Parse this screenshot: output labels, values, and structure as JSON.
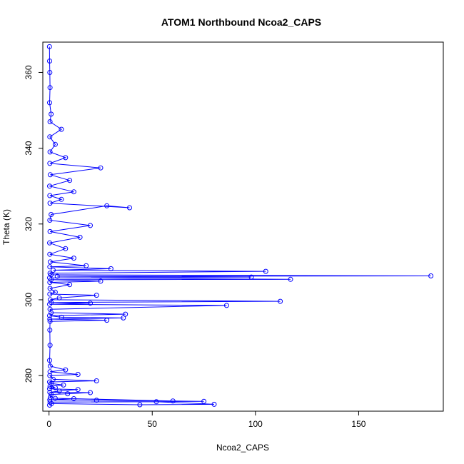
{
  "chart_data": {
    "type": "line",
    "title": "ATOM1 Northbound Ncoa2_CAPS",
    "xlabel": "Ncoa2_CAPS",
    "ylabel": "Theta (K)",
    "xlim": [
      -3,
      191
    ],
    "ylim": [
      270.6,
      368
    ],
    "xticks": [
      0,
      50,
      100,
      150
    ],
    "yticks": [
      280,
      300,
      320,
      340,
      360
    ],
    "grid": false,
    "series_color": "#0000ff",
    "marker": "open-circle",
    "series": [
      {
        "points": [
          [
            0.3,
            272.2
          ],
          [
            1.2,
            272.6
          ],
          [
            44,
            272.3
          ],
          [
            80,
            272.4
          ],
          [
            52,
            273.1
          ],
          [
            0.5,
            273.0
          ],
          [
            75,
            273.2
          ],
          [
            23,
            273.5
          ],
          [
            0.4,
            273.6
          ],
          [
            12,
            273.9
          ],
          [
            60,
            273.3
          ],
          [
            3,
            274.0
          ],
          [
            0.6,
            274.2
          ],
          [
            1,
            275.0
          ],
          [
            9,
            275.2
          ],
          [
            20,
            275.5
          ],
          [
            0.4,
            275.6
          ],
          [
            5,
            275.9
          ],
          [
            14,
            276.3
          ],
          [
            0.3,
            276.5
          ],
          [
            3,
            276.8
          ],
          [
            0.5,
            277.2
          ],
          [
            7,
            277.5
          ],
          [
            1,
            277.9
          ],
          [
            0.3,
            278.3
          ],
          [
            23,
            278.6
          ],
          [
            2,
            279.0
          ],
          [
            0.4,
            280.0
          ],
          [
            14,
            280.3
          ],
          [
            0.5,
            281.0
          ],
          [
            8,
            281.5
          ],
          [
            0.6,
            282.5
          ],
          [
            0.3,
            284
          ],
          [
            0.5,
            288
          ],
          [
            0.4,
            292
          ],
          [
            0.5,
            294.3
          ],
          [
            28,
            294.6
          ],
          [
            0.4,
            294.9
          ],
          [
            36,
            295.2
          ],
          [
            6,
            295.4
          ],
          [
            0.3,
            295.8
          ],
          [
            37,
            296.2
          ],
          [
            1,
            296.6
          ],
          [
            0.5,
            297.5
          ],
          [
            86,
            298.5
          ],
          [
            0.3,
            298.8
          ],
          [
            20,
            299.1
          ],
          [
            1,
            299.3
          ],
          [
            112,
            299.6
          ],
          [
            0.6,
            300.0
          ],
          [
            5,
            300.5
          ],
          [
            23,
            301.2
          ],
          [
            0.4,
            301.5
          ],
          [
            3,
            302.0
          ],
          [
            0.5,
            303.0
          ],
          [
            10,
            304.0
          ],
          [
            0.4,
            304.6
          ],
          [
            25,
            304.9
          ],
          [
            1,
            305.3
          ],
          [
            117,
            305.4
          ],
          [
            0.3,
            305.8
          ],
          [
            98,
            306.0
          ],
          [
            4,
            306.2
          ],
          [
            185,
            306.3
          ],
          [
            1,
            306.6
          ],
          [
            0.5,
            307.0
          ],
          [
            105,
            307.5
          ],
          [
            2,
            307.8
          ],
          [
            30,
            308.2
          ],
          [
            0.4,
            308.7
          ],
          [
            18,
            309.0
          ],
          [
            0.6,
            310.0
          ],
          [
            12,
            311.0
          ],
          [
            0.4,
            312.0
          ],
          [
            8,
            313.5
          ],
          [
            0.3,
            315.0
          ],
          [
            15,
            316.5
          ],
          [
            0.5,
            318.0
          ],
          [
            20,
            319.6
          ],
          [
            0.4,
            321.0
          ],
          [
            1,
            322.5
          ],
          [
            28,
            324.8
          ],
          [
            39,
            324.3
          ],
          [
            0.5,
            325.5
          ],
          [
            6,
            326.5
          ],
          [
            0.4,
            327.5
          ],
          [
            12,
            328.5
          ],
          [
            0.3,
            330.0
          ],
          [
            10,
            331.5
          ],
          [
            0.6,
            333.0
          ],
          [
            25,
            334.8
          ],
          [
            0.4,
            336.0
          ],
          [
            8,
            337.5
          ],
          [
            0.5,
            339.0
          ],
          [
            3,
            341.0
          ],
          [
            0.4,
            343.0
          ],
          [
            6,
            345.0
          ],
          [
            0.5,
            347.0
          ],
          [
            1,
            349.0
          ],
          [
            0.3,
            352.0
          ],
          [
            0.5,
            356.0
          ],
          [
            0.4,
            360.0
          ],
          [
            0.3,
            363.0
          ],
          [
            0.2,
            366.8
          ]
        ]
      }
    ]
  }
}
